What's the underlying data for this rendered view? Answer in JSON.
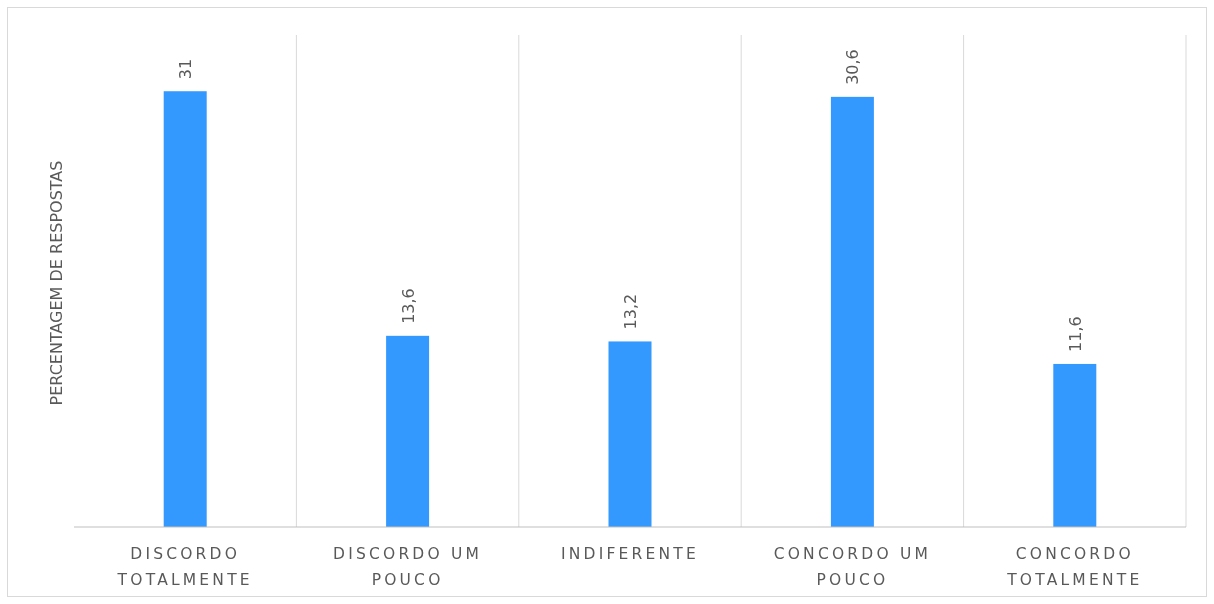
{
  "chart_data": {
    "type": "bar",
    "ylabel": "PERCENTAGEM DE RESPOSTAS",
    "categories": [
      "DISCORDO TOTALMENTE",
      "DISCORDO UM POUCO",
      "INDIFERENTE",
      "CONCORDO UM POUCO",
      "CONCORDO TOTALMENTE"
    ],
    "values": [
      31,
      13.6,
      13.2,
      30.6,
      11.6
    ],
    "color": "#3399ff",
    "value_labels": [
      "31",
      "13,6",
      "13,2",
      "30,6",
      "11,6"
    ],
    "ylim": [
      0,
      35
    ],
    "grid": "x"
  }
}
